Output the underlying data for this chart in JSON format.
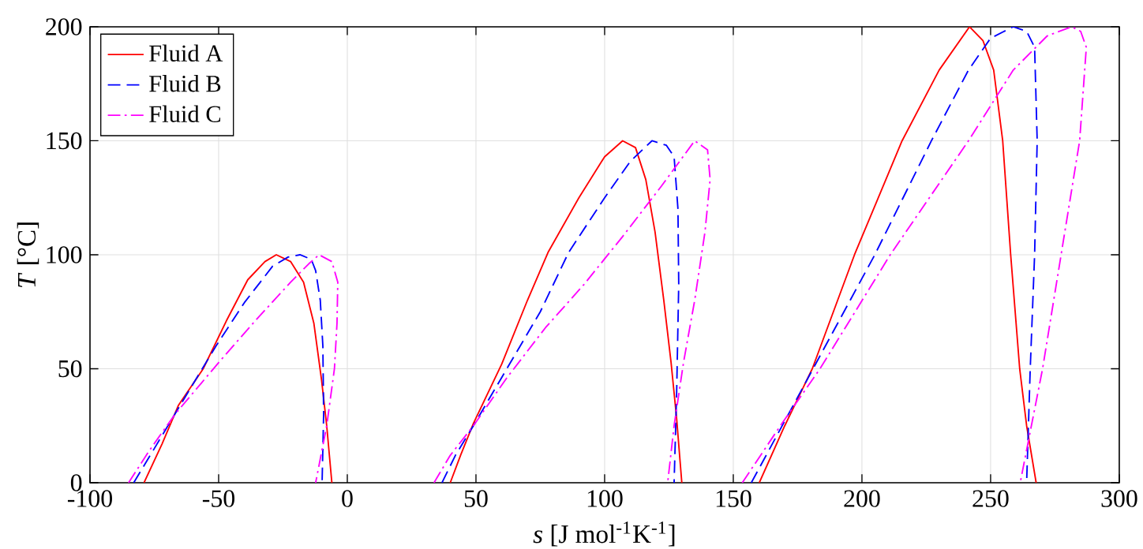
{
  "chart_data": {
    "type": "line",
    "xlabel": "*s* [J mol$^{-1}$K$^{-1}$]",
    "ylabel": "*T* [°C]",
    "xlim": [
      -100,
      300
    ],
    "ylim": [
      0,
      200
    ],
    "xticks": [
      -100,
      -50,
      0,
      50,
      100,
      150,
      200,
      250,
      300
    ],
    "yticks": [
      0,
      50,
      100,
      150,
      200
    ],
    "grid": true,
    "legend": "top left",
    "series": [
      {
        "name": "Fluid A",
        "color": "#ff0000",
        "line_style": "solid",
        "x": [
          -79,
          -72,
          -65.6,
          -56,
          -47,
          -38.7,
          -32,
          -27.6,
          -22,
          -17,
          -13,
          -10,
          -8,
          -6,
          null,
          40,
          44,
          49,
          60,
          70,
          78,
          90,
          100,
          107,
          112,
          116,
          119.6,
          123,
          125.8,
          128,
          130,
          null,
          160.1,
          170,
          180.7,
          197.1,
          215.6,
          230,
          241.8,
          247,
          251.2,
          254.7,
          257.8,
          261.3,
          264,
          267.7
        ],
        "values": [
          0,
          17,
          34,
          50,
          71,
          89,
          97,
          100,
          97,
          88,
          70,
          45,
          25,
          0,
          null,
          0,
          12,
          26,
          52,
          80,
          101,
          125,
          143,
          150,
          147,
          133,
          110,
          80,
          53,
          28,
          0,
          null,
          0,
          25,
          50,
          100,
          150,
          181,
          200,
          194,
          181,
          150,
          100,
          50,
          25,
          0
        ]
      },
      {
        "name": "Fluid B",
        "color": "#0000ff",
        "line_style": "dashed",
        "x": [
          -83,
          -75,
          -66,
          -51,
          -40,
          -29,
          -23,
          -18.4,
          -14,
          -12.3,
          -10.5,
          -9.5,
          -9.2,
          -9.8,
          null,
          36.8,
          42,
          49,
          62,
          75,
          86,
          100,
          110,
          118.4,
          124,
          127,
          128.5,
          128.8,
          128,
          127,
          null,
          157,
          181,
          205,
          227,
          241.4,
          250,
          258.8,
          264,
          267.1,
          268.1,
          267.1,
          265.4,
          264
        ],
        "values": [
          0,
          15,
          32,
          60,
          79,
          95,
          99,
          100,
          98,
          93,
          80,
          60,
          30,
          0,
          null,
          0,
          12,
          25,
          50,
          75,
          101,
          125,
          141,
          150,
          148,
          143,
          120,
          87,
          40,
          0,
          null,
          0,
          50,
          100,
          150,
          181,
          195,
          200,
          198,
          191,
          150,
          100,
          50,
          0
        ]
      },
      {
        "name": "Fluid C",
        "color": "#ff00ff",
        "line_style": "dashdot",
        "x": [
          -85,
          -77,
          -67,
          -49,
          -35,
          -22,
          -15,
          -11,
          -6,
          -3.7,
          -4,
          -5,
          -8,
          -12.3,
          null,
          33.7,
          40,
          49,
          62,
          77,
          92,
          107,
          122,
          135,
          140,
          141,
          139,
          135,
          130.7,
          127,
          124.5,
          null,
          153.5,
          168.3,
          183.7,
          211,
          241.4,
          258.8,
          272,
          281.5,
          285,
          287.2,
          284.6,
          277.4,
          270.2,
          261.5
        ],
        "values": [
          0,
          14,
          30,
          54,
          72,
          88,
          96,
          100,
          97,
          88,
          70,
          50,
          25,
          0,
          null,
          0,
          12,
          25,
          46,
          68,
          87,
          108,
          130,
          150,
          146,
          133,
          110,
          80,
          53,
          25,
          0,
          null,
          0,
          25,
          50,
          100,
          150,
          181,
          196,
          200,
          198,
          191,
          150,
          100,
          50,
          0
        ]
      }
    ]
  }
}
